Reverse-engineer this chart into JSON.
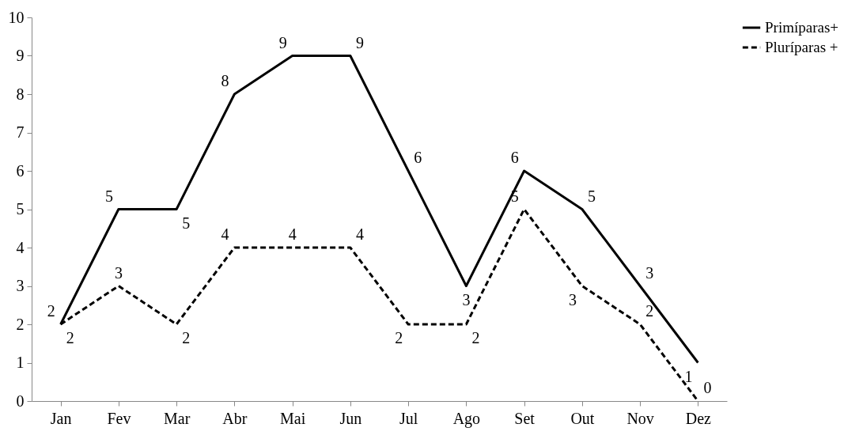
{
  "chart_data": {
    "type": "line",
    "categories": [
      "Jan",
      "Fev",
      "Mar",
      "Abr",
      "Mai",
      "Jun",
      "Jul",
      "Ago",
      "Set",
      "Out",
      "Nov",
      "Dez"
    ],
    "series": [
      {
        "name": "Primíparas+",
        "color": "#000000",
        "line_style": "solid",
        "values": [
          2,
          5,
          5,
          8,
          9,
          9,
          6,
          3,
          6,
          5,
          3,
          1
        ]
      },
      {
        "name": "Pluríparas +",
        "color": "#000000",
        "line_style": "dashed",
        "values": [
          2,
          3,
          2,
          4,
          4,
          4,
          2,
          2,
          5,
          3,
          2,
          0
        ]
      }
    ],
    "ylim": [
      0,
      10
    ],
    "yticks": [
      0,
      1,
      2,
      3,
      4,
      5,
      6,
      7,
      8,
      9,
      10
    ],
    "grid": false,
    "legend": "right",
    "data_labels": true,
    "marker": "none"
  }
}
